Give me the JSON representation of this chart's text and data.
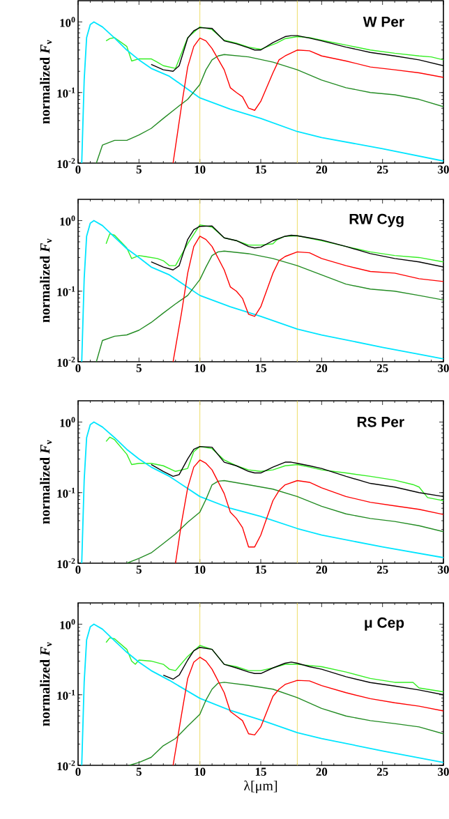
{
  "chart_data": [
    {
      "type": "line",
      "title": "W Per",
      "ylabel": "normalized *F*$_{ν}$",
      "log": "y",
      "marker": "none",
      "line_style": "solid",
      "xlim": [
        0,
        30
      ],
      "ylim": [
        0.01,
        2
      ],
      "xticks": [
        0,
        5,
        10,
        15,
        20,
        25,
        30
      ],
      "yticks": [
        {
          "value": 0.01,
          "label": "10$^{-2}$"
        },
        {
          "value": 0.1,
          "label": "10$^{-1}$"
        },
        {
          "value": 1,
          "label": "10$^{0}$"
        }
      ],
      "ref_lines": [
        {
          "axis": "x",
          "value": 10,
          "color": "#eedd66"
        },
        {
          "axis": "x",
          "value": 18,
          "color": "#eedd66"
        }
      ],
      "series": [
        {
          "color": "#33ee22",
          "x": [
            2.3,
            2.6,
            3,
            4,
            4.4,
            5,
            6,
            6.5,
            7,
            8,
            9,
            10,
            11,
            12,
            13,
            14,
            15,
            16.3,
            17,
            18,
            19,
            20,
            22,
            24,
            26,
            28,
            29,
            30
          ],
          "values": [
            0.54,
            0.58,
            0.6,
            0.45,
            0.28,
            0.3,
            0.3,
            0.27,
            0.24,
            0.22,
            0.6,
            0.85,
            0.78,
            0.55,
            0.5,
            0.44,
            0.41,
            0.5,
            0.58,
            0.62,
            0.6,
            0.55,
            0.47,
            0.4,
            0.36,
            0.33,
            0.32,
            0.29
          ]
        },
        {
          "color": "#00e5ff",
          "x": [
            0.3,
            0.5,
            0.7,
            1.0,
            1.3,
            2,
            3,
            4,
            5,
            6,
            7.5,
            10,
            12.5,
            15,
            18,
            20,
            25,
            30
          ],
          "values": [
            0.01,
            0.15,
            0.6,
            0.92,
            1.0,
            0.85,
            0.59,
            0.4,
            0.29,
            0.22,
            0.17,
            0.084,
            0.058,
            0.043,
            0.028,
            0.023,
            0.016,
            0.0107
          ]
        },
        {
          "color": "#228b22",
          "x": [
            1.5,
            2,
            3,
            4,
            5,
            6,
            7,
            8,
            9,
            10,
            10.5,
            11,
            11.5,
            12,
            14,
            16,
            18,
            20,
            22,
            24,
            26,
            28,
            30
          ],
          "values": [
            0.01,
            0.018,
            0.021,
            0.021,
            0.025,
            0.031,
            0.043,
            0.059,
            0.08,
            0.13,
            0.21,
            0.29,
            0.33,
            0.345,
            0.32,
            0.27,
            0.21,
            0.15,
            0.117,
            0.1,
            0.093,
            0.08,
            0.063
          ]
        },
        {
          "color": "#ff0000",
          "x": [
            7.8,
            8.5,
            9,
            9.5,
            10,
            10.5,
            11,
            12,
            12.5,
            13,
            13.5,
            14,
            14.5,
            15,
            16,
            16.5,
            17,
            18,
            19,
            20,
            22,
            24,
            26,
            28,
            30
          ],
          "values": [
            0.01,
            0.066,
            0.23,
            0.45,
            0.59,
            0.54,
            0.42,
            0.21,
            0.117,
            0.1,
            0.087,
            0.06,
            0.056,
            0.075,
            0.19,
            0.29,
            0.33,
            0.4,
            0.39,
            0.33,
            0.28,
            0.23,
            0.21,
            0.19,
            0.164
          ]
        },
        {
          "color": "#000000",
          "x": [
            6,
            7,
            7.8,
            8.3,
            9,
            9.5,
            10,
            11,
            12,
            13,
            14,
            14.5,
            15,
            16,
            17,
            17.5,
            18,
            19,
            20,
            22,
            24,
            26,
            28,
            30
          ],
          "values": [
            0.25,
            0.21,
            0.2,
            0.24,
            0.59,
            0.75,
            0.83,
            0.81,
            0.54,
            0.49,
            0.43,
            0.4,
            0.4,
            0.51,
            0.62,
            0.64,
            0.64,
            0.59,
            0.54,
            0.44,
            0.37,
            0.33,
            0.29,
            0.24
          ]
        }
      ]
    },
    {
      "type": "line",
      "title": "RW Cyg",
      "ylabel": "normalized *F*$_{ν}$",
      "log": "y",
      "marker": "none",
      "line_style": "solid",
      "xlim": [
        0,
        30
      ],
      "ylim": [
        0.01,
        2
      ],
      "xticks": [
        0,
        5,
        10,
        15,
        20,
        25,
        30
      ],
      "yticks": [
        {
          "value": 0.01,
          "label": "10$^{-2}$"
        },
        {
          "value": 0.1,
          "label": "10$^{-1}$"
        },
        {
          "value": 1,
          "label": "10$^{0}$"
        }
      ],
      "ref_lines": [
        {
          "axis": "x",
          "value": 10,
          "color": "#eedd66"
        },
        {
          "axis": "x",
          "value": 18,
          "color": "#eedd66"
        }
      ],
      "series": [
        {
          "color": "#33ee22",
          "x": [
            2.3,
            2.6,
            3,
            4,
            4.4,
            5,
            5.5,
            6.5,
            7,
            7.5,
            8,
            9,
            10,
            11,
            12,
            13,
            14,
            15,
            16,
            16.3,
            17,
            18,
            20,
            22,
            24,
            26,
            28,
            30
          ],
          "values": [
            0.47,
            0.65,
            0.62,
            0.41,
            0.29,
            0.32,
            0.31,
            0.29,
            0.27,
            0.23,
            0.23,
            0.47,
            0.87,
            0.81,
            0.57,
            0.52,
            0.45,
            0.45,
            0.47,
            0.53,
            0.6,
            0.61,
            0.52,
            0.43,
            0.36,
            0.32,
            0.3,
            0.26
          ]
        },
        {
          "color": "#00e5ff",
          "x": [
            0.3,
            0.5,
            0.7,
            1.0,
            1.3,
            2,
            3,
            4,
            5,
            6,
            7.5,
            10,
            12.5,
            15,
            18,
            20,
            25,
            30
          ],
          "values": [
            0.01,
            0.15,
            0.6,
            0.92,
            1.0,
            0.85,
            0.58,
            0.4,
            0.3,
            0.22,
            0.17,
            0.087,
            0.06,
            0.044,
            0.029,
            0.024,
            0.016,
            0.011
          ]
        },
        {
          "color": "#228b22",
          "x": [
            1.5,
            2,
            3,
            4,
            5,
            6,
            7,
            8,
            9,
            10,
            10.5,
            11,
            11.5,
            12,
            14,
            16,
            18,
            20,
            22,
            24,
            26,
            28,
            30
          ],
          "values": [
            0.01,
            0.02,
            0.023,
            0.024,
            0.028,
            0.036,
            0.049,
            0.066,
            0.087,
            0.146,
            0.22,
            0.32,
            0.36,
            0.37,
            0.34,
            0.29,
            0.23,
            0.17,
            0.126,
            0.107,
            0.1,
            0.087,
            0.075
          ]
        },
        {
          "color": "#ff0000",
          "x": [
            7.8,
            8.5,
            9,
            9.5,
            10,
            10.5,
            11,
            12,
            12.5,
            13,
            13.5,
            14,
            14.5,
            15,
            16,
            16.5,
            17,
            18,
            19,
            20,
            22,
            24,
            26,
            28,
            30
          ],
          "values": [
            0.01,
            0.05,
            0.18,
            0.43,
            0.6,
            0.54,
            0.43,
            0.2,
            0.115,
            0.1,
            0.079,
            0.047,
            0.044,
            0.06,
            0.18,
            0.27,
            0.31,
            0.36,
            0.35,
            0.29,
            0.23,
            0.19,
            0.18,
            0.15,
            0.137
          ]
        },
        {
          "color": "#000000",
          "x": [
            6,
            7,
            7.8,
            8.3,
            9,
            9.5,
            10,
            11,
            12,
            13,
            14,
            14.5,
            15,
            16,
            17,
            17.5,
            18,
            19,
            20,
            22,
            24,
            26,
            28,
            30
          ],
          "values": [
            0.26,
            0.22,
            0.2,
            0.23,
            0.54,
            0.74,
            0.83,
            0.84,
            0.57,
            0.52,
            0.43,
            0.41,
            0.42,
            0.52,
            0.6,
            0.62,
            0.61,
            0.57,
            0.53,
            0.43,
            0.34,
            0.29,
            0.26,
            0.22
          ]
        }
      ]
    },
    {
      "type": "line",
      "title": "RS Per",
      "ylabel": "normalized *F*$_{ν}$",
      "log": "y",
      "marker": "none",
      "line_style": "solid",
      "xlim": [
        0,
        30
      ],
      "ylim": [
        0.01,
        2
      ],
      "xticks": [
        0,
        5,
        10,
        15,
        20,
        25,
        30
      ],
      "yticks": [
        {
          "value": 0.01,
          "label": "10$^{-2}$"
        },
        {
          "value": 0.1,
          "label": "10$^{-1}$"
        },
        {
          "value": 1,
          "label": "10$^{0}$"
        }
      ],
      "ref_lines": [
        {
          "axis": "x",
          "value": 10,
          "color": "#eedd66"
        },
        {
          "axis": "x",
          "value": 18,
          "color": "#eedd66"
        }
      ],
      "series": [
        {
          "color": "#33ee22",
          "x": [
            2.3,
            2.6,
            3,
            4,
            4.4,
            5,
            6,
            7,
            8,
            9,
            9.5,
            10,
            11,
            12,
            13,
            14,
            15,
            16,
            17,
            18,
            19,
            20,
            22,
            24,
            26,
            27.5,
            28,
            28.7,
            29.5,
            30
          ],
          "values": [
            0.53,
            0.61,
            0.56,
            0.35,
            0.25,
            0.26,
            0.26,
            0.24,
            0.2,
            0.22,
            0.38,
            0.45,
            0.42,
            0.29,
            0.24,
            0.21,
            0.2,
            0.21,
            0.24,
            0.25,
            0.23,
            0.21,
            0.19,
            0.17,
            0.15,
            0.13,
            0.12,
            0.085,
            0.08,
            0.077
          ]
        },
        {
          "color": "#00e5ff",
          "x": [
            0.3,
            0.5,
            0.7,
            1.0,
            1.3,
            2,
            3,
            4,
            5,
            6,
            7.5,
            10,
            12.5,
            15,
            18,
            20,
            25,
            30
          ],
          "values": [
            0.01,
            0.15,
            0.6,
            0.92,
            1.0,
            0.85,
            0.6,
            0.41,
            0.3,
            0.23,
            0.17,
            0.088,
            0.06,
            0.046,
            0.031,
            0.025,
            0.017,
            0.012
          ]
        },
        {
          "color": "#228b22",
          "x": [
            4,
            5,
            6,
            7,
            8,
            9,
            10,
            10.5,
            11,
            11.5,
            12,
            14,
            16,
            18,
            20,
            22,
            24,
            26,
            28,
            30
          ],
          "values": [
            0.01,
            0.0117,
            0.014,
            0.019,
            0.026,
            0.038,
            0.053,
            0.08,
            0.129,
            0.145,
            0.148,
            0.129,
            0.112,
            0.088,
            0.064,
            0.05,
            0.043,
            0.039,
            0.034,
            0.028
          ]
        },
        {
          "color": "#ff0000",
          "x": [
            8,
            8.5,
            9,
            9.5,
            10,
            10.5,
            11,
            12,
            12.5,
            13,
            13.5,
            14,
            14.5,
            15,
            16,
            16.5,
            17,
            18,
            19,
            20,
            22,
            24,
            26,
            28,
            30
          ],
          "values": [
            0.01,
            0.038,
            0.117,
            0.23,
            0.29,
            0.26,
            0.21,
            0.097,
            0.053,
            0.043,
            0.032,
            0.017,
            0.017,
            0.025,
            0.077,
            0.107,
            0.129,
            0.148,
            0.14,
            0.117,
            0.088,
            0.073,
            0.065,
            0.058,
            0.049
          ]
        },
        {
          "color": "#000000",
          "x": [
            6,
            7,
            7.8,
            8.3,
            9,
            9.5,
            10,
            11,
            12,
            13,
            14,
            14.5,
            15,
            16,
            17,
            17.5,
            18,
            19,
            20,
            22,
            24,
            26,
            28,
            30
          ],
          "values": [
            0.25,
            0.2,
            0.17,
            0.18,
            0.3,
            0.41,
            0.45,
            0.44,
            0.27,
            0.24,
            0.2,
            0.19,
            0.19,
            0.23,
            0.27,
            0.27,
            0.26,
            0.24,
            0.22,
            0.17,
            0.135,
            0.12,
            0.1,
            0.088
          ]
        }
      ]
    },
    {
      "type": "line",
      "title": "μ Cep",
      "xlabel": "λ[μm]",
      "ylabel": "normalized *F*$_{ν}$",
      "log": "y",
      "marker": "none",
      "line_style": "solid",
      "xlim": [
        0,
        30
      ],
      "ylim": [
        0.01,
        2
      ],
      "xticks": [
        0,
        5,
        10,
        15,
        20,
        25,
        30
      ],
      "yticks": [
        {
          "value": 0.01,
          "label": "10$^{-2}$"
        },
        {
          "value": 0.1,
          "label": "10$^{-1}$"
        },
        {
          "value": 1,
          "label": "10$^{0}$"
        }
      ],
      "ref_lines": [
        {
          "axis": "x",
          "value": 10,
          "color": "#eedd66"
        },
        {
          "axis": "x",
          "value": 18,
          "color": "#eedd66"
        }
      ],
      "series": [
        {
          "color": "#33ee22",
          "x": [
            2.3,
            2.6,
            3,
            4,
            4.4,
            4.7,
            5,
            6,
            7,
            7.5,
            8,
            9,
            10,
            11,
            12,
            13,
            14,
            15,
            16,
            17,
            18,
            20,
            22,
            24,
            26,
            27.5,
            28,
            30
          ],
          "values": [
            0.55,
            0.64,
            0.62,
            0.44,
            0.3,
            0.27,
            0.31,
            0.3,
            0.27,
            0.23,
            0.22,
            0.35,
            0.5,
            0.44,
            0.27,
            0.25,
            0.22,
            0.22,
            0.24,
            0.27,
            0.27,
            0.25,
            0.21,
            0.17,
            0.15,
            0.15,
            0.125,
            0.11
          ]
        },
        {
          "color": "#00e5ff",
          "x": [
            0.3,
            0.5,
            0.7,
            1.0,
            1.3,
            2,
            3,
            4,
            5,
            6,
            7.5,
            10,
            12.5,
            15,
            18,
            20,
            25,
            30
          ],
          "values": [
            0.01,
            0.15,
            0.6,
            0.92,
            1.0,
            0.85,
            0.58,
            0.4,
            0.29,
            0.22,
            0.16,
            0.089,
            0.06,
            0.044,
            0.029,
            0.024,
            0.016,
            0.011
          ]
        },
        {
          "color": "#228b22",
          "x": [
            4.2,
            5,
            6,
            7,
            8,
            9,
            10,
            10.5,
            11,
            11.5,
            12,
            14,
            16,
            18,
            20,
            22,
            24,
            26,
            28,
            30
          ],
          "values": [
            0.01,
            0.011,
            0.013,
            0.019,
            0.024,
            0.036,
            0.053,
            0.084,
            0.12,
            0.146,
            0.15,
            0.136,
            0.12,
            0.091,
            0.064,
            0.05,
            0.043,
            0.039,
            0.035,
            0.028
          ]
        },
        {
          "color": "#ff0000",
          "x": [
            7.8,
            8.5,
            9,
            9.5,
            10,
            10.5,
            11,
            12,
            12.5,
            13,
            13.5,
            14,
            14.5,
            15,
            16,
            16.5,
            17,
            18,
            19,
            20,
            22,
            24,
            26,
            28,
            30
          ],
          "values": [
            0.01,
            0.053,
            0.17,
            0.29,
            0.34,
            0.3,
            0.23,
            0.107,
            0.058,
            0.05,
            0.043,
            0.028,
            0.027,
            0.035,
            0.095,
            0.12,
            0.14,
            0.16,
            0.157,
            0.135,
            0.107,
            0.088,
            0.077,
            0.069,
            0.059
          ]
        },
        {
          "color": "#000000",
          "x": [
            7,
            7.8,
            8.3,
            9,
            9.5,
            10,
            11,
            12,
            13,
            14,
            14.5,
            15,
            16,
            17,
            17.5,
            18,
            19,
            20,
            22,
            24,
            26,
            28,
            30
          ],
          "values": [
            0.19,
            0.166,
            0.19,
            0.31,
            0.42,
            0.47,
            0.44,
            0.27,
            0.24,
            0.21,
            0.2,
            0.2,
            0.24,
            0.28,
            0.29,
            0.28,
            0.25,
            0.23,
            0.18,
            0.149,
            0.133,
            0.117,
            0.1
          ]
        }
      ]
    }
  ]
}
